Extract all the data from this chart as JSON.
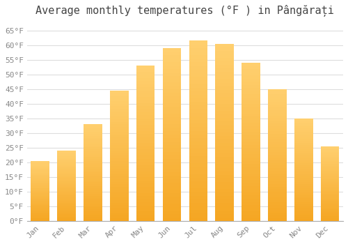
{
  "title": "Average monthly temperatures (°F ) in Pângărați",
  "months": [
    "Jan",
    "Feb",
    "Mar",
    "Apr",
    "May",
    "Jun",
    "Jul",
    "Aug",
    "Sep",
    "Oct",
    "Nov",
    "Dec"
  ],
  "values": [
    20.5,
    24.0,
    33.0,
    44.5,
    53.0,
    59.0,
    61.5,
    60.5,
    54.0,
    45.0,
    35.0,
    25.5
  ],
  "bar_color_bottom": "#F5A623",
  "bar_color_top": "#FFD070",
  "background_color": "#FFFFFF",
  "grid_color": "#DDDDDD",
  "ylim": [
    0,
    68
  ],
  "yticks": [
    0,
    5,
    10,
    15,
    20,
    25,
    30,
    35,
    40,
    45,
    50,
    55,
    60,
    65
  ],
  "title_fontsize": 11,
  "tick_fontsize": 8,
  "bar_width": 0.7,
  "tick_color": "#888888",
  "title_color": "#444444"
}
